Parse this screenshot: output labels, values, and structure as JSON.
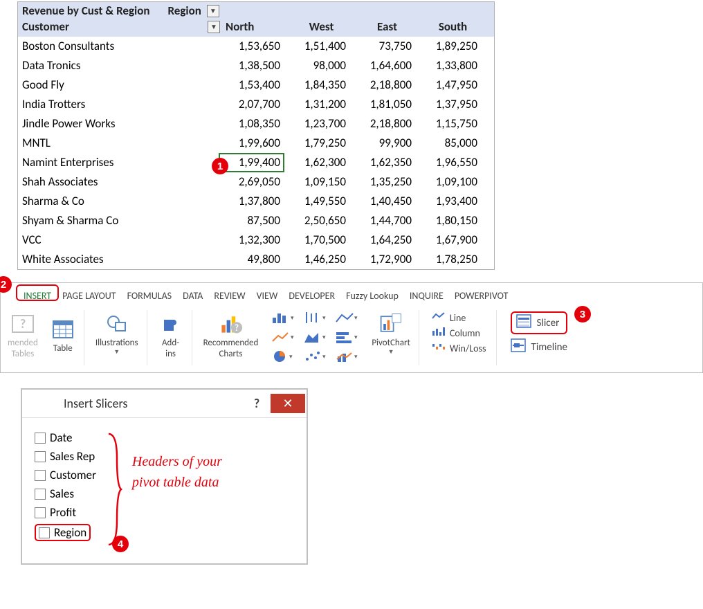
{
  "colors": {
    "accent_red": "#e3000b",
    "header_bg": "#d9e1f2",
    "cell_select": "#2e7d32",
    "close_btn": "#c0392b",
    "icon_blue": "#4472c4"
  },
  "badges": {
    "b1": "1",
    "b2": "2",
    "b3": "3",
    "b4": "4"
  },
  "pivot": {
    "title": "Revenue by Cust & Region",
    "col_field_label": "Region",
    "row_field_label": "Customer",
    "columns": [
      "North",
      "West",
      "East",
      "South"
    ],
    "rows": [
      {
        "customer": "Boston Consultants",
        "vals": [
          "1,53,650",
          "1,51,400",
          "73,750",
          "1,89,250"
        ]
      },
      {
        "customer": "Data Tronics",
        "vals": [
          "1,38,500",
          "98,000",
          "1,64,600",
          "1,33,800"
        ]
      },
      {
        "customer": "Good Fly",
        "vals": [
          "1,53,400",
          "1,84,350",
          "2,18,800",
          "1,47,950"
        ]
      },
      {
        "customer": "India Trotters",
        "vals": [
          "2,07,700",
          "1,31,200",
          "1,81,050",
          "1,37,950"
        ]
      },
      {
        "customer": "Jindle Power Works",
        "vals": [
          "1,08,350",
          "1,23,700",
          "2,18,800",
          "1,15,750"
        ]
      },
      {
        "customer": "MNTL",
        "vals": [
          "1,99,600",
          "1,79,250",
          "99,900",
          "85,000"
        ]
      },
      {
        "customer": "Namint Enterprises",
        "vals": [
          "1,99,400",
          "1,62,300",
          "1,62,350",
          "1,96,550"
        ]
      },
      {
        "customer": "Shah Associates",
        "vals": [
          "2,69,050",
          "1,09,150",
          "1,35,250",
          "1,09,100"
        ]
      },
      {
        "customer": "Sharma & Co",
        "vals": [
          "1,37,800",
          "1,49,550",
          "1,40,450",
          "1,93,400"
        ]
      },
      {
        "customer": "Shyam & Sharma Co",
        "vals": [
          "87,500",
          "2,50,650",
          "1,44,700",
          "1,80,150"
        ]
      },
      {
        "customer": "VCC",
        "vals": [
          "1,32,300",
          "1,70,500",
          "1,64,250",
          "1,67,900"
        ]
      },
      {
        "customer": "White Associates",
        "vals": [
          "49,800",
          "1,46,250",
          "1,72,900",
          "1,78,250"
        ]
      }
    ],
    "selected_cell": {
      "row": 6,
      "col": 0
    }
  },
  "ribbon": {
    "tabs": [
      "INSERT",
      "PAGE LAYOUT",
      "FORMULAS",
      "DATA",
      "REVIEW",
      "VIEW",
      "DEVELOPER",
      "Fuzzy Lookup",
      "INQUIRE",
      "POWERPIVOT"
    ],
    "active_tab": "INSERT",
    "btn_recommended_tables": "mended\nTables",
    "btn_table": "Table",
    "btn_illustrations": "Illustrations",
    "btn_addins": "Add-\nins",
    "btn_rec_charts": "Recommended\nCharts",
    "btn_pivotchart": "PivotChart",
    "spark_line": "Line",
    "spark_column": "Column",
    "spark_winloss": "Win/Loss",
    "filter_slicer": "Slicer",
    "filter_timeline": "Timeline"
  },
  "dialog": {
    "title": "Insert Slicers",
    "fields": [
      "Date",
      "Sales Rep",
      "Customer",
      "Sales",
      "Profit",
      "Region"
    ],
    "annotation": "Headers of your\npivot table data"
  }
}
